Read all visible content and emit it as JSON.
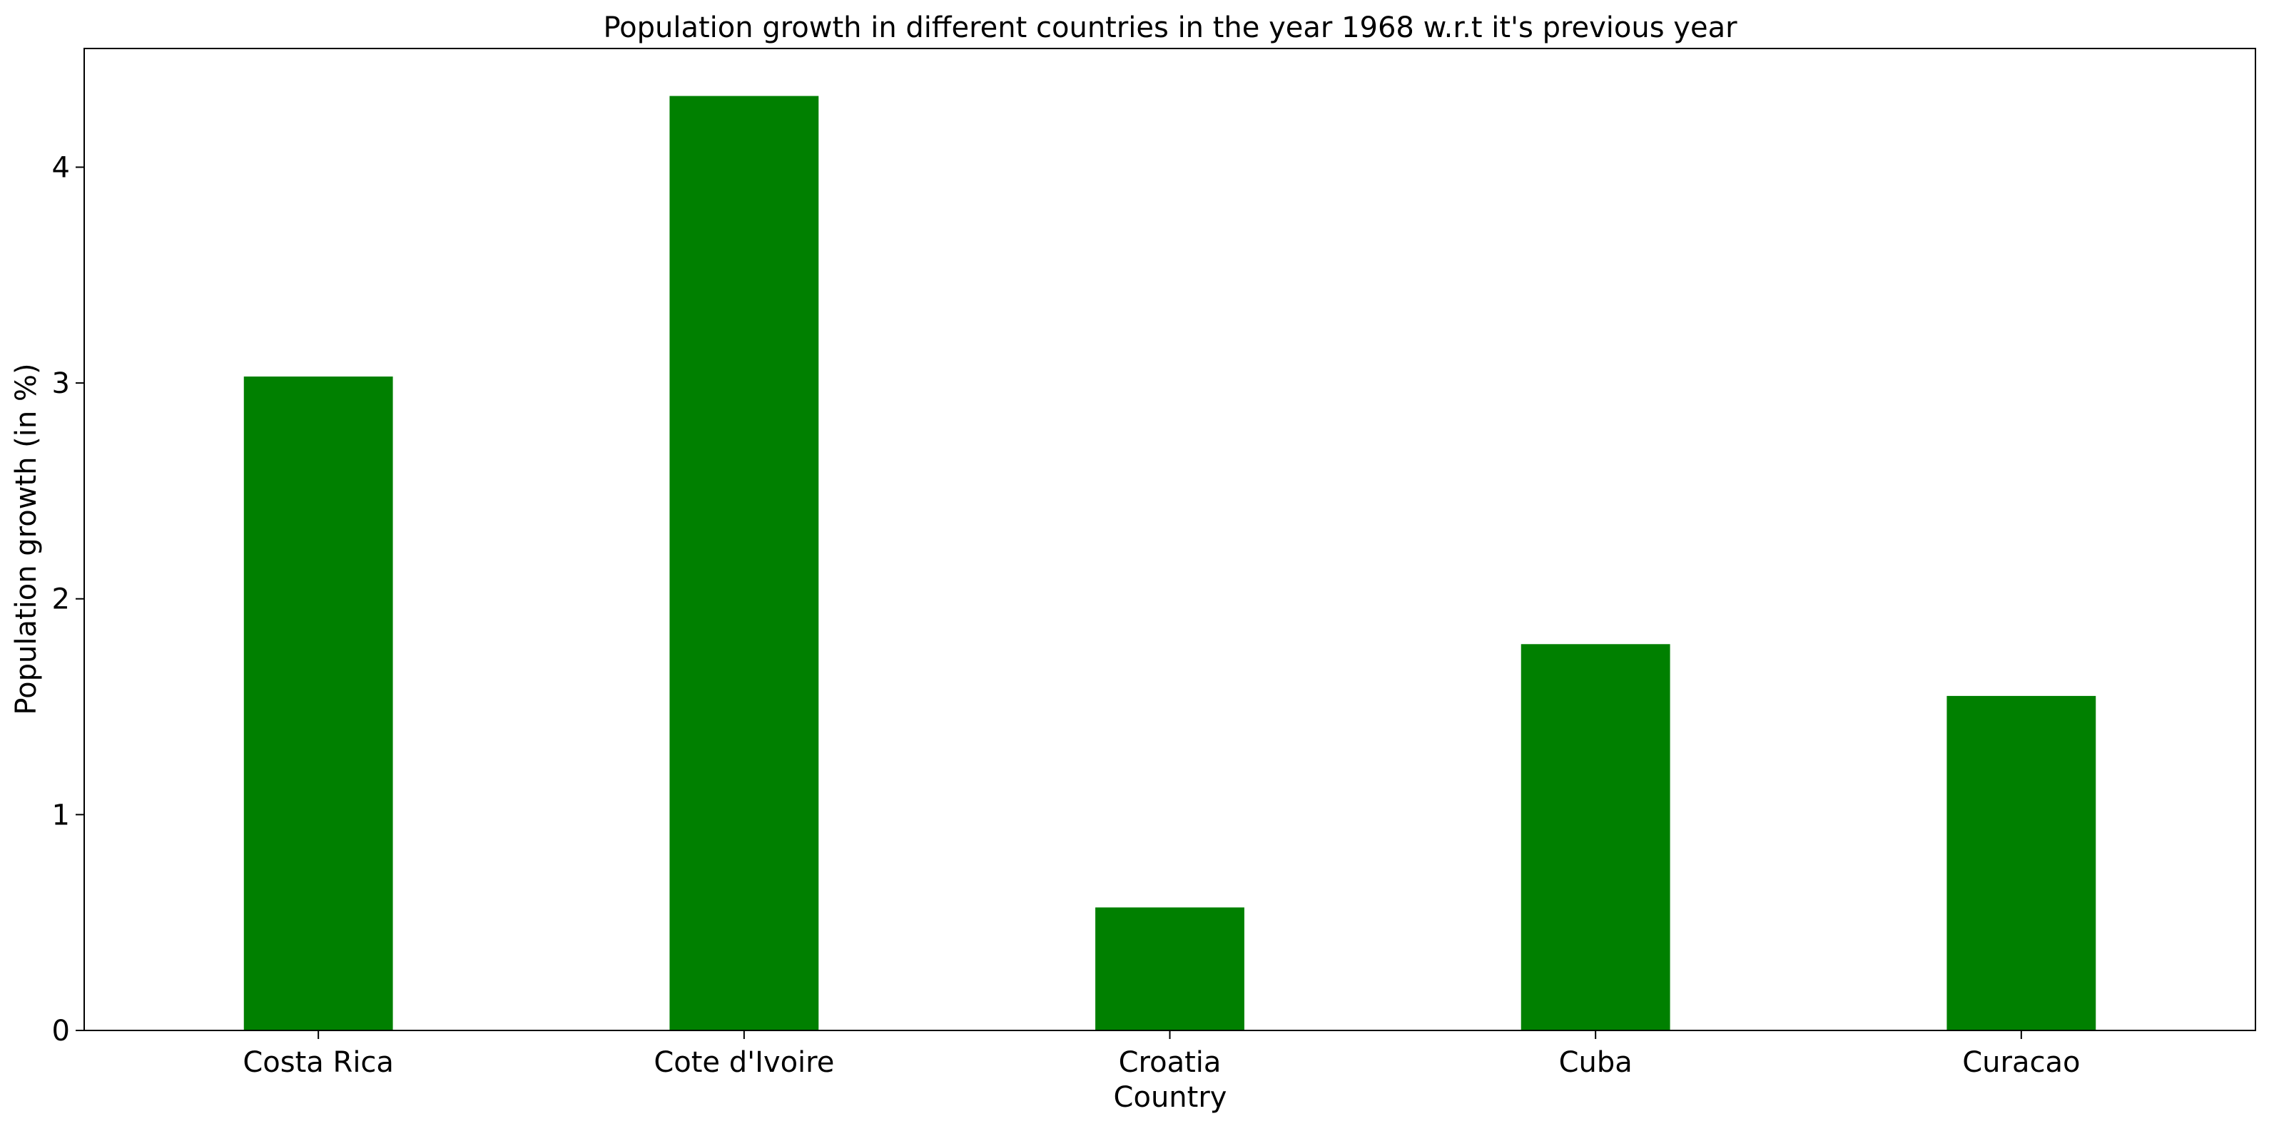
{
  "chart_data": {
    "type": "bar",
    "title": "Population growth in different countries in the year 1968 w.r.t it's previous year",
    "xlabel": "Country",
    "ylabel": "Population growth (in %)",
    "categories": [
      "Costa Rica",
      "Cote d'Ivoire",
      "Croatia",
      "Cuba",
      "Curacao"
    ],
    "values": [
      3.03,
      4.33,
      0.57,
      1.79,
      1.55
    ],
    "ylim": [
      0,
      4.55
    ],
    "yticks": [
      0,
      1,
      2,
      3,
      4
    ],
    "bar_color": "#008000",
    "grid": false,
    "legend": "none"
  }
}
